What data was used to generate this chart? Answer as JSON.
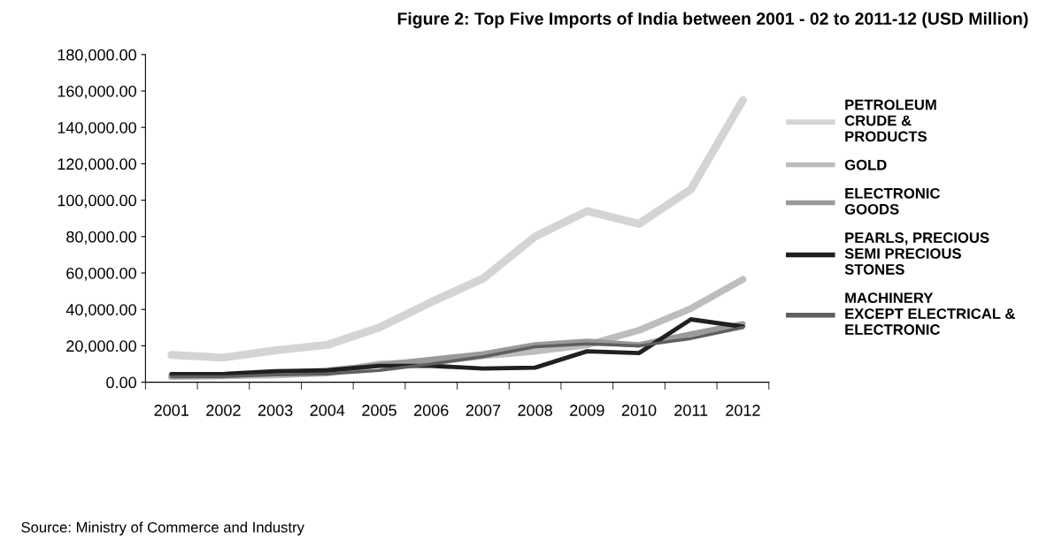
{
  "chart_data": {
    "type": "line",
    "title": "Figure 2: Top Five Imports of India between 2001 - 02 to 2011-12 (USD Million)",
    "categories": [
      "2001",
      "2002",
      "2003",
      "2004",
      "2005",
      "2006",
      "2007",
      "2008",
      "2009",
      "2010",
      "2011",
      "2012"
    ],
    "series": [
      {
        "name": "PETROLEUM\nCRUDE &\nPRODUCTS",
        "color": "#d4d4d6",
        "values": [
          15000,
          13500,
          17500,
          20500,
          30000,
          44000,
          57000,
          80000,
          94000,
          87000,
          106000,
          155000
        ]
      },
      {
        "name": "GOLD",
        "color": "#bdbdc0",
        "values": [
          3000,
          3500,
          4000,
          5000,
          10000,
          11000,
          14500,
          17000,
          20500,
          28500,
          40500,
          56500
        ]
      },
      {
        "name": "ELECTRONIC\nGOODS",
        "color": "#9a9a9d",
        "values": [
          3500,
          4000,
          5000,
          6500,
          9500,
          12500,
          15500,
          20500,
          22500,
          20500,
          26500,
          32000
        ]
      },
      {
        "name": "PEARLS, PRECIOUS\nSEMI PRECIOUS\nSTONES",
        "color": "#231f20",
        "values": [
          4500,
          4500,
          6000,
          6500,
          9000,
          9000,
          7500,
          8000,
          17000,
          16000,
          34500,
          30500
        ]
      },
      {
        "name": "MACHINERY\nEXCEPT ELECTRICAL &\nELECTRONIC",
        "color": "#5f5f61",
        "values": [
          3000,
          3000,
          4000,
          4500,
          6500,
          10000,
          14000,
          19500,
          21000,
          20000,
          24000,
          30000
        ]
      }
    ],
    "ylim": [
      0,
      180000
    ],
    "yticks": [
      {
        "value": 0,
        "label": "0.00"
      },
      {
        "value": 20000,
        "label": "20,000.00"
      },
      {
        "value": 40000,
        "label": "40,000.00"
      },
      {
        "value": 60000,
        "label": "60,000.00"
      },
      {
        "value": 80000,
        "label": "80,000.00"
      },
      {
        "value": 100000,
        "label": "100,000.00"
      },
      {
        "value": 120000,
        "label": "120,000.00"
      },
      {
        "value": 140000,
        "label": "140,000.00"
      },
      {
        "value": 160000,
        "label": "160,000.00"
      },
      {
        "value": 180000,
        "label": "180,000.00"
      }
    ],
    "grid": false,
    "legend": "right",
    "marker": "none",
    "line_style": "solid",
    "annotations": [
      "Source: Ministry of Commerce and Industry"
    ]
  }
}
